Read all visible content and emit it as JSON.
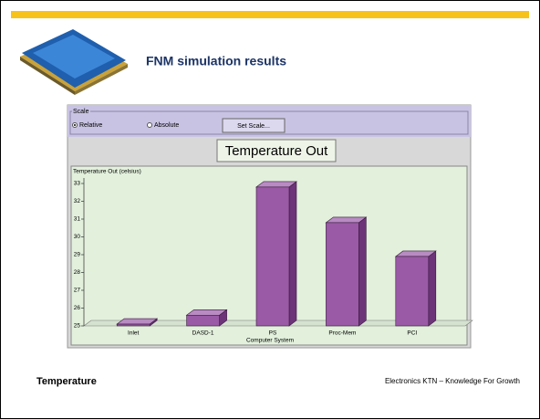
{
  "slide": {
    "title": "FNM simulation results",
    "footer_left": "Temperature",
    "footer_right": "Electronics KTN – Knowledge For Growth"
  },
  "ui": {
    "group_label": "Scale",
    "radio_relative": "Relative",
    "radio_absolute": "Absolute",
    "button": "Set Scale..."
  },
  "chart_data": {
    "type": "bar3d",
    "title": "Temperature Out",
    "y_label": "Temperature Out (celsius)",
    "x_label": "Computer System",
    "categories": [
      "Inlet",
      "DASD-1",
      "PS",
      "Proc-Mem",
      "PCI"
    ],
    "values": [
      25.1,
      25.6,
      32.8,
      30.8,
      28.9
    ],
    "color": "#9a5aa6",
    "ylim": [
      25,
      33
    ],
    "yticks": [
      25,
      26,
      27,
      28,
      29,
      30,
      31,
      32,
      33
    ],
    "grid": false
  }
}
